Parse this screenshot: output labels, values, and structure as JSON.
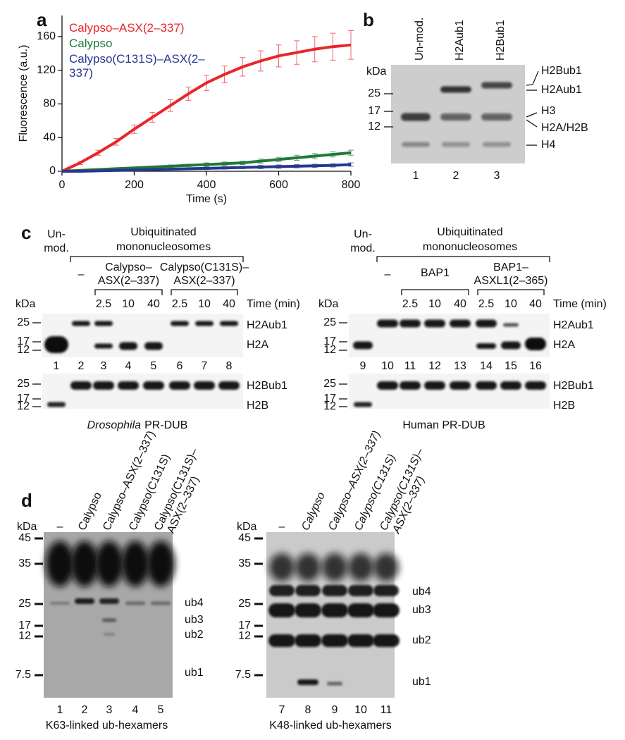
{
  "chart_data": {
    "type": "line",
    "panel_label": "a",
    "xlabel": "Time (s)",
    "ylabel": "Fluorescence (a.u.)",
    "x": [
      0,
      50,
      100,
      150,
      200,
      250,
      300,
      350,
      400,
      450,
      500,
      550,
      600,
      650,
      700,
      750,
      800
    ],
    "xlim": [
      0,
      800
    ],
    "xticks": [
      0,
      200,
      400,
      600,
      800
    ],
    "ylim": [
      0,
      185
    ],
    "yticks": [
      0,
      40,
      80,
      120,
      160
    ],
    "series": [
      {
        "name": "Calypso–ASX(2–337)",
        "color": "#e8262b",
        "values": [
          0,
          10,
          22,
          35,
          50,
          64,
          78,
          92,
          105,
          115,
          124,
          131,
          137,
          141,
          145,
          148,
          150
        ],
        "errors": [
          0,
          2,
          3,
          4,
          5,
          6,
          7,
          8,
          9,
          10,
          11,
          12,
          13,
          14,
          15,
          16,
          17
        ]
      },
      {
        "name": "Calypso",
        "color": "#1f7a3a",
        "values": [
          0,
          1,
          2,
          3,
          4,
          5,
          6,
          7,
          8,
          9,
          10,
          12,
          14,
          16,
          18,
          20,
          22
        ],
        "errors": [
          0,
          0.5,
          0.5,
          1,
          1,
          1,
          1.5,
          1.5,
          2,
          2,
          2,
          2.5,
          2.5,
          3,
          3,
          3,
          3
        ]
      },
      {
        "name": "Calypso(C131S)–ASX(2–337)",
        "color": "#27378f",
        "values": [
          0,
          0,
          0.5,
          1,
          1.5,
          2,
          2.5,
          3,
          3.5,
          4,
          4.5,
          5,
          5.5,
          6,
          6.5,
          7,
          8
        ],
        "errors": [
          0,
          0.5,
          0.5,
          0.5,
          1,
          1,
          1,
          1,
          1.5,
          1.5,
          1.5,
          2,
          2,
          2,
          2,
          2,
          2
        ]
      }
    ]
  },
  "panel_b": {
    "label": "b",
    "kda": "kDa",
    "lanes": [
      "Un-mod.",
      "H2Aub1",
      "H2Bub1"
    ],
    "markers": [
      "25",
      "17",
      "12"
    ],
    "bands": [
      "H2Bub1",
      "H2Aub1",
      "H3",
      "H2A/H2B",
      "H4"
    ],
    "lane_numbers": [
      "1",
      "2",
      "3"
    ]
  },
  "panel_c": {
    "label": "c",
    "left": {
      "unmod": [
        "Un-",
        "mod."
      ],
      "ubiq": [
        "Ubiquitinated",
        "mononucleosomes"
      ],
      "dash": "–",
      "groups": [
        [
          "Calypso–",
          "ASX(2–337)"
        ],
        [
          "Calypso(C131S)–",
          "ASX(2–337)"
        ]
      ],
      "times": [
        "2.5",
        "10",
        "40",
        "2.5",
        "10",
        "40"
      ],
      "time_label": "Time (min)",
      "kda": "kDa",
      "markers_top": [
        "25",
        "17",
        "12"
      ],
      "bands_top": [
        "H2Aub1",
        "H2A"
      ],
      "markers_bottom": [
        "25",
        "17",
        "12"
      ],
      "bands_bottom": [
        "H2Bub1",
        "H2B"
      ],
      "lane_numbers": [
        "1",
        "2",
        "3",
        "4",
        "5",
        "6",
        "7",
        "8"
      ],
      "caption_italic": "Drosophila",
      "caption": "PR-DUB"
    },
    "right": {
      "unmod": [
        "Un-",
        "mod."
      ],
      "ubiq": [
        "Ubiquitinated",
        "mononucleosomes"
      ],
      "dash": "–",
      "groups": [
        [
          "BAP1"
        ],
        [
          "BAP1–",
          "ASXL1(2–365)"
        ]
      ],
      "times": [
        "2.5",
        "10",
        "40",
        "2.5",
        "10",
        "40"
      ],
      "time_label": "Time (min)",
      "kda": "kDa",
      "markers_top": [
        "25",
        "17",
        "12"
      ],
      "bands_top": [
        "H2Aub1",
        "H2A"
      ],
      "markers_bottom": [
        "25",
        "17",
        "12"
      ],
      "bands_bottom": [
        "H2Bub1",
        "H2B"
      ],
      "lane_numbers": [
        "9",
        "10",
        "11",
        "12",
        "13",
        "14",
        "15",
        "16"
      ],
      "caption": "Human PR-DUB"
    }
  },
  "panel_d": {
    "label": "d",
    "left": {
      "kda": "kDa",
      "lane_labels": [
        [
          "–"
        ],
        [
          "Calypso"
        ],
        [
          "Calypso–ASX(2–337)"
        ],
        [
          "Calypso(C131S)"
        ],
        [
          "Calypso(C131S)–",
          "ASX(2–337)"
        ]
      ],
      "markers": [
        "45",
        "35",
        "25",
        "17",
        "12",
        "7.5"
      ],
      "bands": [
        "ub4",
        "ub3",
        "ub2",
        "ub1"
      ],
      "lane_numbers": [
        "1",
        "2",
        "3",
        "4",
        "5"
      ],
      "caption": "K63-linked ub-hexamers"
    },
    "right": {
      "kda": "kDa",
      "lane_labels": [
        [
          "–"
        ],
        [
          "Calypso"
        ],
        [
          "Calypso–ASX(2–337)"
        ],
        [
          "Calypso(C131S)"
        ],
        [
          "Calypso(C131S)–",
          "ASX(2–337)"
        ]
      ],
      "markers": [
        "45",
        "35",
        "25",
        "17",
        "12",
        "7.5"
      ],
      "bands": [
        "ub4",
        "ub3",
        "ub2",
        "ub1"
      ],
      "lane_numbers": [
        "7",
        "8",
        "9",
        "10",
        "11"
      ],
      "caption": "K48-linked ub-hexamers"
    }
  }
}
